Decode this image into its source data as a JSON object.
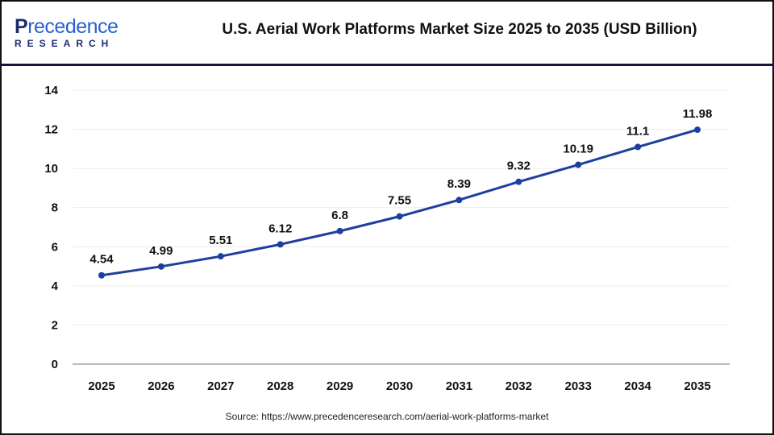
{
  "logo": {
    "text_top_initial": "P",
    "text_top_rest": "recedence",
    "text_bottom": "RESEARCH"
  },
  "title": "U.S. Aerial Work Platforms Market Size 2025 to 2035 (USD Billion)",
  "source": "Source: https://www.precedenceresearch.com/aerial-work-platforms-market",
  "chart_data": {
    "type": "line",
    "title": "U.S. Aerial Work Platforms Market Size 2025 to 2035 (USD Billion)",
    "categories": [
      "2025",
      "2026",
      "2027",
      "2028",
      "2029",
      "2030",
      "2031",
      "2032",
      "2033",
      "2034",
      "2035"
    ],
    "series": [
      {
        "values": [
          4.54,
          4.99,
          5.51,
          6.12,
          6.8,
          7.55,
          8.39,
          9.32,
          10.19,
          11.1,
          11.98
        ],
        "color": "#1f3f9e"
      }
    ],
    "data_labels": [
      "4.54",
      "4.99",
      "5.51",
      "6.12",
      "6.8",
      "7.55",
      "8.39",
      "9.32",
      "10.19",
      "11.1",
      "11.98"
    ],
    "yticks": [
      "0",
      "2",
      "4",
      "6",
      "8",
      "10",
      "12",
      "14"
    ],
    "ylim": [
      0,
      14
    ],
    "grid": true,
    "xlabel": "",
    "ylabel": ""
  }
}
